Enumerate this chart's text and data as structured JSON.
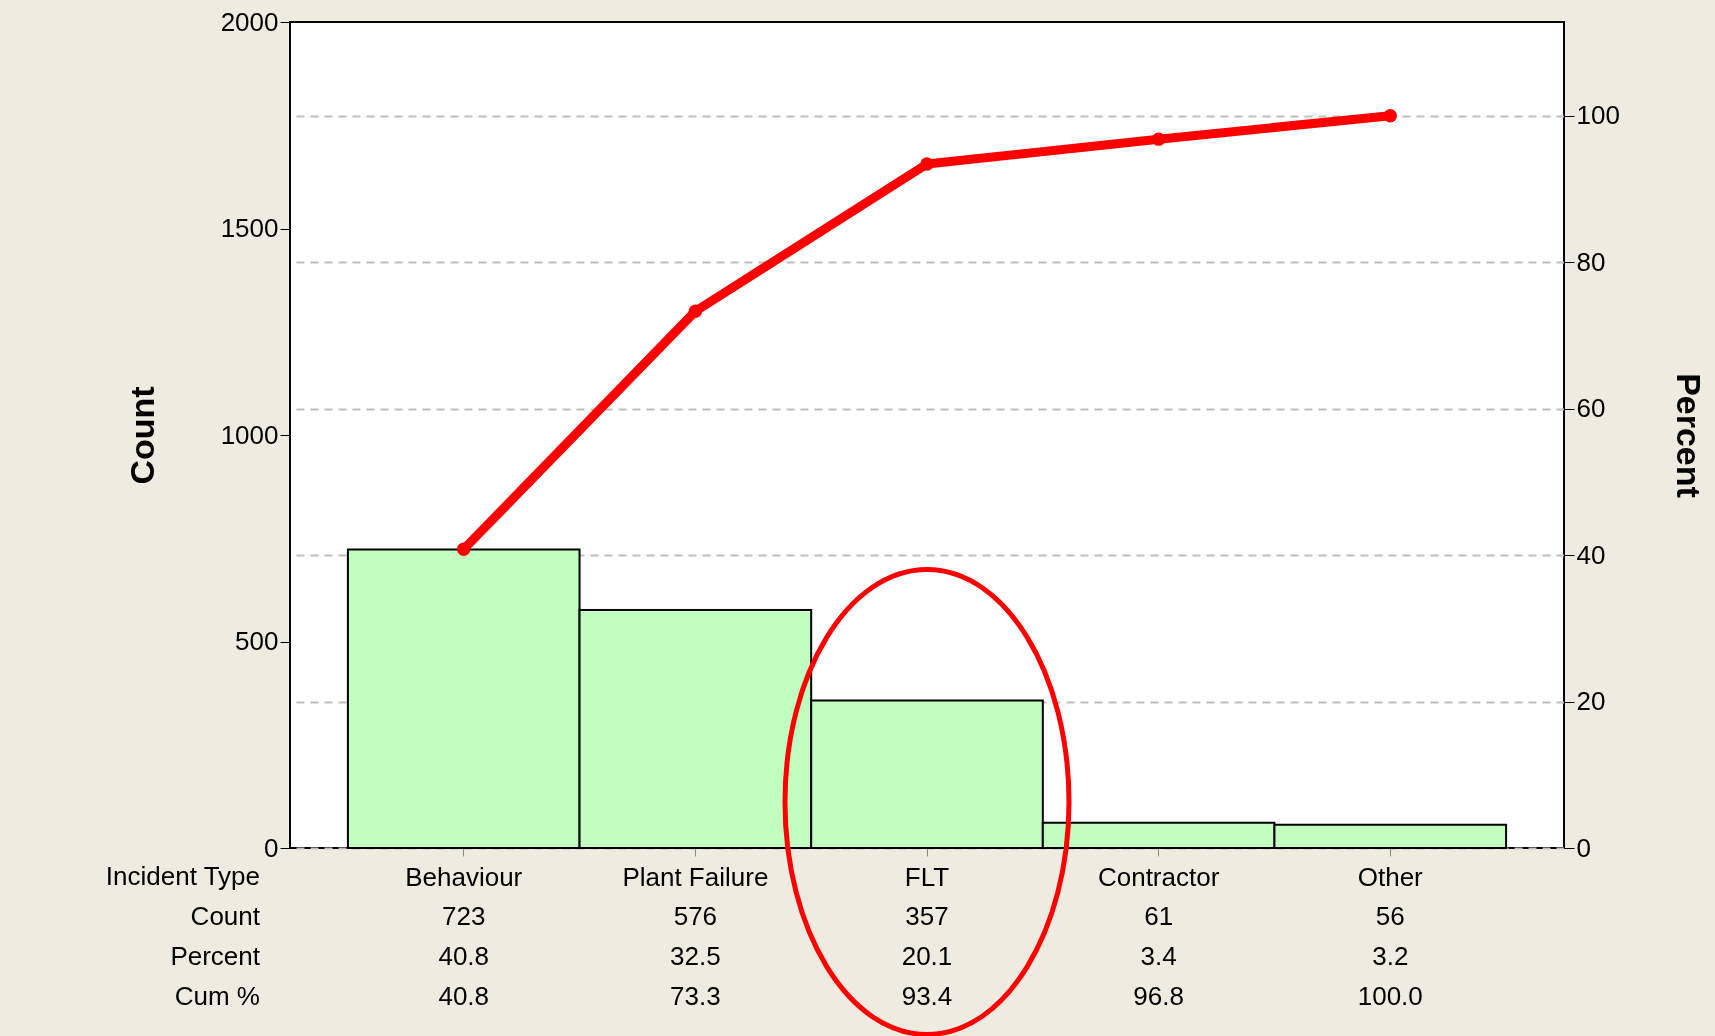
{
  "chart_data": {
    "type": "bar",
    "xlabel": "Incident Type",
    "ylabel": "Count",
    "y2label": "Percent",
    "categories": [
      "Behaviour",
      "Plant Failure",
      "FLT",
      "Contractor",
      "Other"
    ],
    "series": [
      {
        "type": "bar",
        "color": "#c0ffc0",
        "values": [
          723,
          576,
          357,
          61,
          56
        ]
      },
      {
        "type": "line",
        "axis": "y2",
        "color": "#ff0000",
        "values": [
          40.8,
          73.3,
          93.4,
          96.8,
          100.0
        ],
        "value_labels": [
          "40.8",
          "73.3",
          "93.4",
          "96.8",
          "100.0"
        ]
      }
    ],
    "annotations": [
      "Count",
      "Percent",
      "Cum %",
      "40.8",
      "32.5",
      "20.1",
      "3.4",
      "3.2"
    ],
    "ylim": [
      0,
      2000
    ],
    "yticks": [
      0,
      500,
      1000,
      1500,
      2000
    ],
    "y2lim": [
      0,
      112.8
    ],
    "y2ticks": [
      0,
      20,
      40,
      60,
      80,
      100
    ],
    "grid": "y",
    "marker": "circle",
    "data_labels": true
  }
}
